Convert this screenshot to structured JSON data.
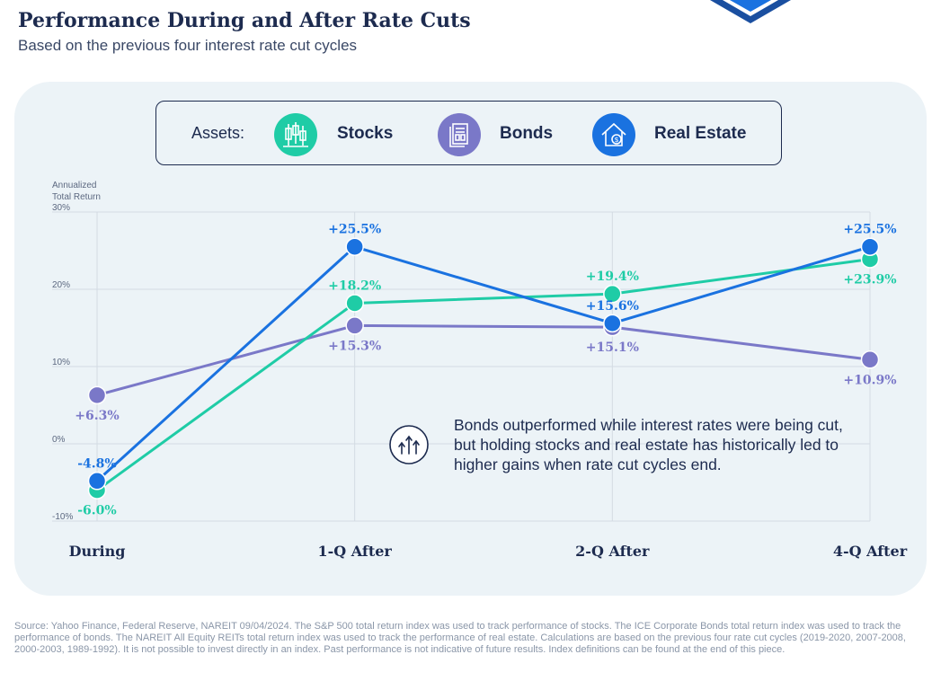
{
  "header": {
    "title": "Performance During and After Rate Cuts",
    "subtitle": "Based on the previous four interest rate cut cycles"
  },
  "legend": {
    "label": "Assets:",
    "items": [
      {
        "name": "Stocks",
        "color": "#1fcca6",
        "icon": "candlestick-chart-icon"
      },
      {
        "name": "Bonds",
        "color": "#7a78c8",
        "icon": "document-icon"
      },
      {
        "name": "Real Estate",
        "color": "#1a72e0",
        "icon": "house-dollar-icon"
      }
    ]
  },
  "chart_data": {
    "type": "line",
    "ylabel_line1": "Annualized",
    "ylabel_line2": "Total Return",
    "categories": [
      "During",
      "1-Q After",
      "2-Q After",
      "4-Q After"
    ],
    "ylim": [
      -10,
      30
    ],
    "yticks": [
      30,
      20,
      10,
      0,
      -10
    ],
    "ytick_labels": [
      "30%",
      "20%",
      "10%",
      "0%",
      "-10%"
    ],
    "grid": true,
    "series": [
      {
        "name": "Bonds",
        "color": "#7a78c8",
        "values": [
          6.3,
          15.3,
          15.1,
          10.9
        ],
        "labels": [
          "+6.3%",
          "+15.3%",
          "+15.1%",
          "+10.9%"
        ],
        "label_pos": [
          "below",
          "below",
          "below",
          "below"
        ]
      },
      {
        "name": "Stocks",
        "color": "#1fcca6",
        "values": [
          -6.0,
          18.2,
          19.4,
          23.9
        ],
        "labels": [
          "-6.0%",
          "+18.2%",
          "+19.4%",
          "+23.9%"
        ],
        "label_pos": [
          "below",
          "above",
          "above",
          "below"
        ]
      },
      {
        "name": "Real Estate",
        "color": "#1a72e0",
        "values": [
          -4.8,
          25.5,
          15.6,
          25.5
        ],
        "labels": [
          "-4.8%",
          "+25.5%",
          "+15.6%",
          "+25.5%"
        ],
        "label_pos": [
          "above",
          "above",
          "above",
          "above"
        ]
      }
    ]
  },
  "callout": {
    "icon": "rising-arrows-icon",
    "text": "Bonds outperformed while interest rates were being cut, but holding stocks and real estate has historically led to higher gains when rate cut cycles end."
  },
  "footer": {
    "source": "Source: Yahoo Finance, Federal Reserve, NAREIT 09/04/2024. The S&P 500 total return index was used to track performance of stocks. The ICE Corporate Bonds total return index was used to track the performance of bonds. The NAREIT All Equity REITs total return index was used to track the performance of real estate. Calculations are based on the previous four rate cut cycles (2019-2020, 2007-2008, 2000-2003, 1989-1992). It is not possible to invest directly in an index. Past performance is not indicative of future results. Index definitions can be found at the end of this piece."
  }
}
